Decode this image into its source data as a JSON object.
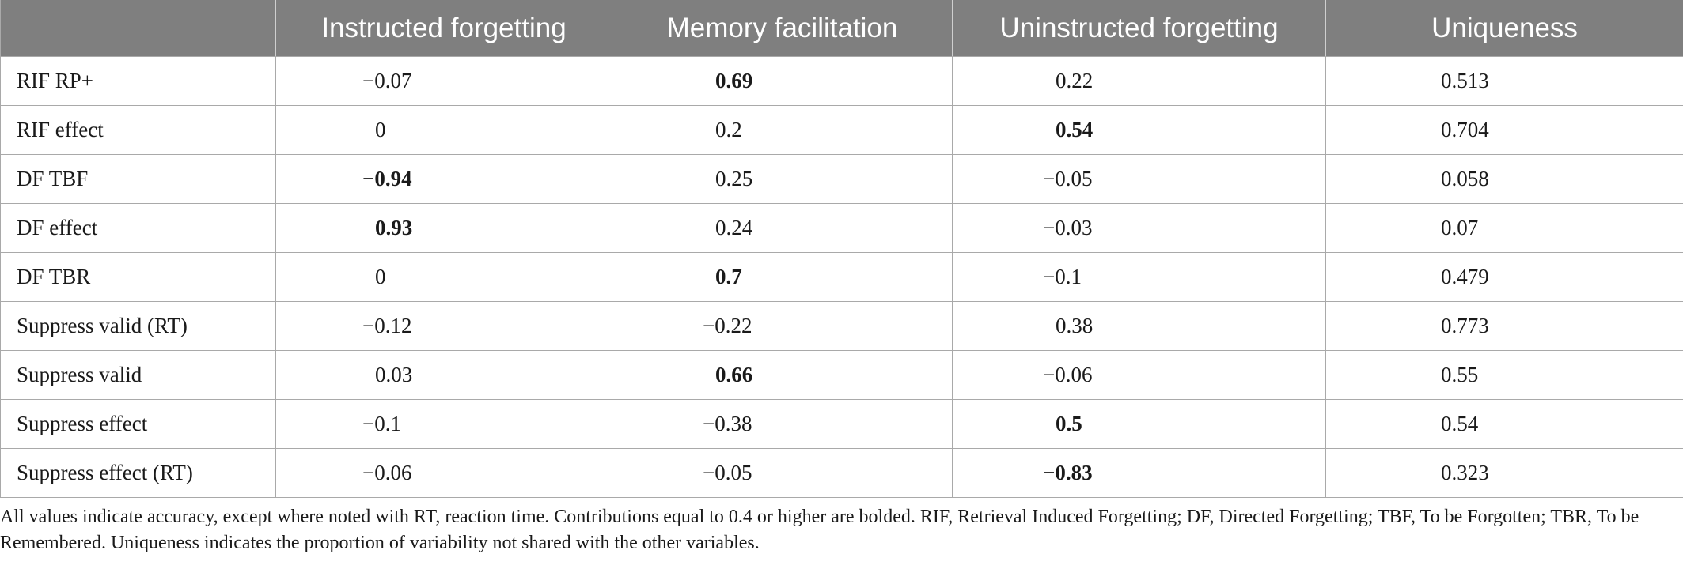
{
  "table": {
    "headers": [
      "",
      "Instructed forgetting",
      "Memory facilitation",
      "Uninstructed forgetting",
      "Uniqueness"
    ],
    "rows": [
      {
        "label": "RIF RP+",
        "values": [
          "−0.07",
          "0.69",
          "0.22",
          "0.513"
        ],
        "bold": [
          false,
          true,
          false,
          false
        ]
      },
      {
        "label": "RIF effect",
        "values": [
          "0",
          "0.2",
          "0.54",
          "0.704"
        ],
        "bold": [
          false,
          false,
          true,
          false
        ]
      },
      {
        "label": "DF TBF",
        "values": [
          "−0.94",
          "0.25",
          "−0.05",
          "0.058"
        ],
        "bold": [
          true,
          false,
          false,
          false
        ]
      },
      {
        "label": "DF effect",
        "values": [
          "0.93",
          "0.24",
          "−0.03",
          "0.07"
        ],
        "bold": [
          true,
          false,
          false,
          false
        ]
      },
      {
        "label": "DF TBR",
        "values": [
          "0",
          "0.7",
          "−0.1",
          "0.479"
        ],
        "bold": [
          false,
          true,
          false,
          false
        ]
      },
      {
        "label": "Suppress valid (RT)",
        "values": [
          "−0.12",
          "−0.22",
          "0.38",
          "0.773"
        ],
        "bold": [
          false,
          false,
          false,
          false
        ]
      },
      {
        "label": "Suppress valid",
        "values": [
          "0.03",
          "0.66",
          "−0.06",
          "0.55"
        ],
        "bold": [
          false,
          true,
          false,
          false
        ]
      },
      {
        "label": "Suppress effect",
        "values": [
          "−0.1",
          "−0.38",
          "0.5",
          "0.54"
        ],
        "bold": [
          false,
          false,
          true,
          false
        ]
      },
      {
        "label": "Suppress effect (RT)",
        "values": [
          "−0.06",
          "−0.05",
          "−0.83",
          "0.323"
        ],
        "bold": [
          false,
          false,
          true,
          false
        ]
      }
    ]
  },
  "footnote": "All values indicate accuracy, except where noted with RT, reaction time. Contributions equal to 0.4 or higher are bolded. RIF, Retrieval Induced Forgetting; DF, Directed Forgetting; TBF, To be Forgotten; TBR, To be Remembered. Uniqueness indicates the proportion of variability not shared with the other variables."
}
